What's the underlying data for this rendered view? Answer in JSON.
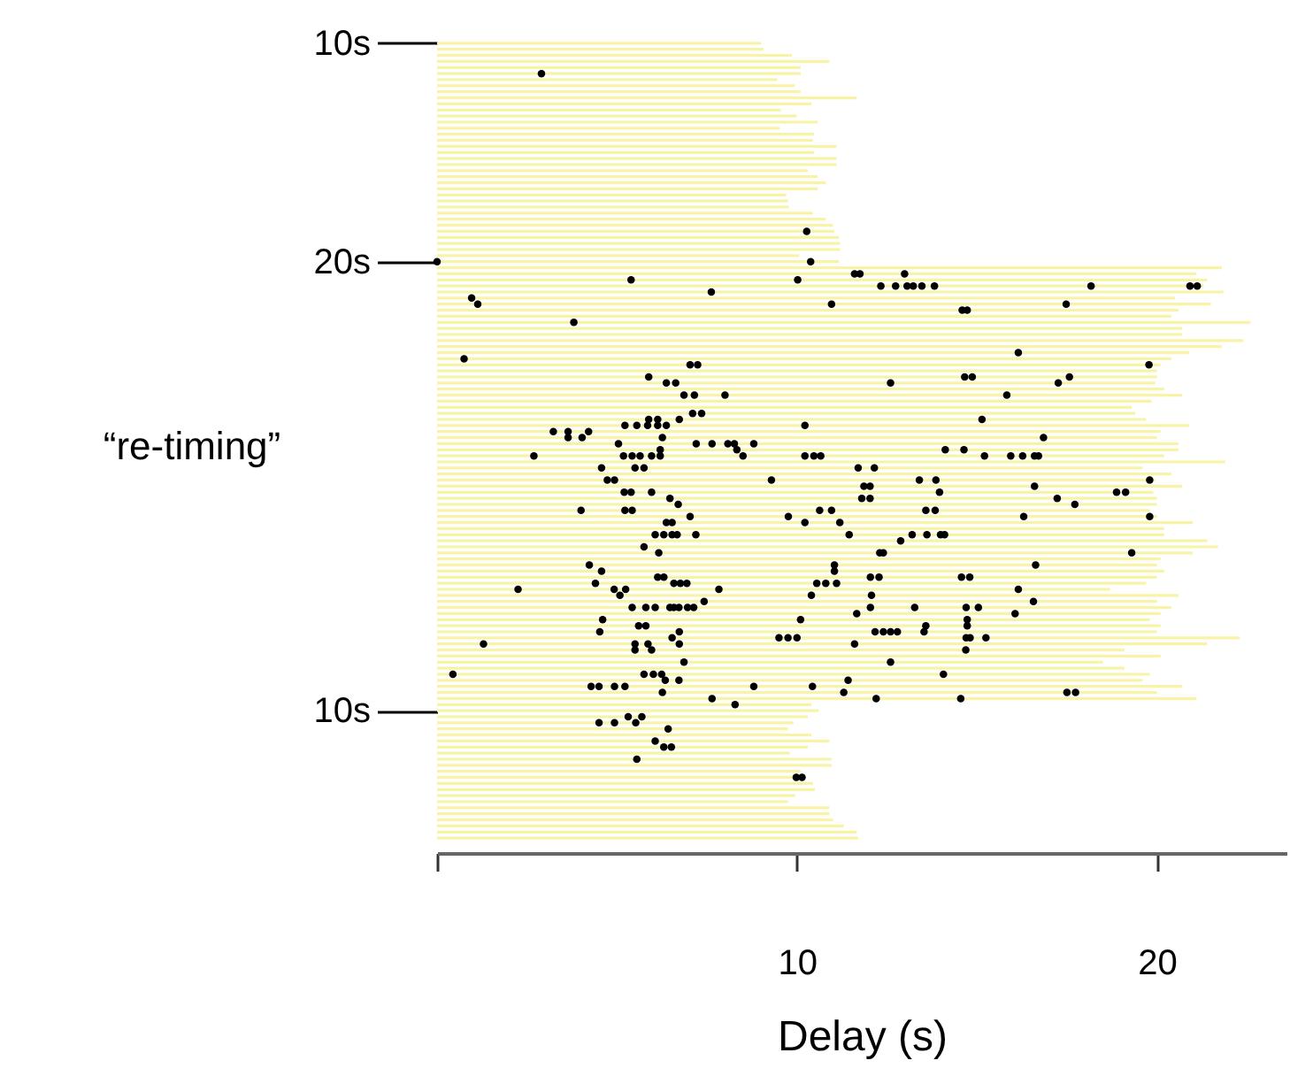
{
  "chart_data": {
    "type": "bar",
    "orientation": "horizontal",
    "xlabel": "Delay (s)",
    "ylabel": "“re-timing”",
    "xlim": [
      0,
      23.6
    ],
    "xticks": [
      {
        "value": 0,
        "label": null
      },
      10,
      20
    ],
    "categories": [
      "10s",
      null,
      null,
      null,
      null,
      null,
      null,
      null,
      null,
      null,
      null,
      null,
      null,
      null,
      null,
      null,
      null,
      null,
      null,
      null,
      null,
      null,
      null,
      null,
      null,
      null,
      null,
      null,
      null,
      null,
      null,
      null,
      null,
      null,
      null,
      null,
      "20s",
      null,
      null,
      null,
      null,
      null,
      null,
      null,
      null,
      null,
      null,
      null,
      null,
      null,
      null,
      null,
      null,
      null,
      null,
      null,
      null,
      null,
      null,
      null,
      null,
      null,
      null,
      null,
      null,
      null,
      null,
      null,
      null,
      null,
      null,
      null,
      null,
      null,
      null,
      null,
      null,
      null,
      null,
      null,
      null,
      null,
      null,
      null,
      null,
      null,
      null,
      null,
      null,
      null,
      null,
      null,
      null,
      null,
      null,
      null,
      null,
      null,
      null,
      null,
      null,
      null,
      null,
      null,
      null,
      null,
      null,
      null,
      null,
      null,
      "10s",
      null,
      null,
      null,
      null,
      null,
      null,
      null,
      null,
      null,
      null,
      null,
      null,
      null,
      null,
      null,
      null,
      null,
      null,
      null,
      null,
      null
    ],
    "marker": "circle",
    "series": [
      {
        "color": "#f8f3a6",
        "values": [
          9.0,
          9.07,
          9.86,
          10.9,
          10.1,
          10.1,
          9.45,
          9.94,
          10.1,
          11.66,
          10.4,
          9.55,
          9.99,
          10.58,
          9.52,
          10.47,
          10.44,
          11.1,
          10.47,
          11.1,
          11.1,
          10.3,
          10.58,
          10.8,
          10.58,
          9.7,
          9.75,
          9.77,
          10.44,
          10.8,
          11.0,
          11.04,
          11.17,
          11.2,
          11.2,
          10.06,
          11.17,
          21.8,
          21.1,
          21.4,
          21.3,
          21.85,
          20.5,
          21.5,
          20.6,
          20.4,
          22.6,
          20.7,
          20.7,
          22.4,
          21.8,
          20.9,
          20.4,
          20.1,
          20.0,
          20.0,
          19.95,
          20.2,
          20.7,
          19.85,
          19.3,
          19.4,
          19.7,
          20.9,
          20.1,
          20.0,
          20.6,
          20.6,
          20.2,
          21.9,
          19.6,
          20.4,
          19.95,
          20.7,
          19.9,
          20.0,
          20.0,
          19.8,
          20.0,
          21.0,
          20.2,
          20.2,
          21.4,
          21.7,
          21.0,
          20.1,
          20.0,
          20.2,
          20.0,
          19.7,
          18.7,
          20.6,
          20.0,
          20.4,
          20.1,
          19.8,
          20.1,
          20.0,
          22.3,
          21.4,
          19.1,
          20.1,
          18.5,
          19.1,
          19.8,
          19.6,
          20.7,
          20.0,
          21.1,
          10.4,
          10.6,
          10.3,
          9.9,
          9.75,
          10.4,
          10.9,
          10.3,
          9.8,
          10.96,
          10.96,
          10.1,
          9.95,
          10.45,
          10.5,
          9.95,
          9.75,
          10.9,
          10.9,
          11.0,
          11.3,
          11.66,
          11.7
        ]
      },
      {
        "type": "scatter",
        "color": "#000000",
        "values": [
          null,
          null,
          null,
          null,
          null,
          2.9,
          null,
          null,
          null,
          null,
          null,
          null,
          null,
          null,
          null,
          null,
          null,
          null,
          null,
          null,
          null,
          null,
          null,
          null,
          null,
          null,
          null,
          null,
          null,
          null,
          null,
          10.27,
          null,
          null,
          null,
          null,
          0,
          null,
          11.6,
          5.39,
          12.33,
          7.62,
          0.96,
          1.13,
          14.59,
          null,
          3.8,
          null,
          null,
          null,
          null,
          16.15,
          0.75,
          7.03,
          null,
          5.88,
          6.37,
          null,
          6.86,
          null,
          null,
          7.1,
          5.88,
          5.22,
          3.23,
          3.64,
          5.04,
          6.2,
          2.69,
          null,
          4.57,
          null,
          4.73,
          11.86,
          5.2,
          6.47,
          6.7,
          4.0,
          7.03,
          6.37,
          null,
          6.06,
          12.88,
          5.75,
          6.16,
          null,
          4.23,
          4.57,
          6.13,
          4.4,
          2.25,
          5.08,
          7.42,
          5.42,
          11.66,
          4.6,
          5.6,
          4.52,
          6.53,
          1.29,
          5.5,
          null,
          6.86,
          null,
          0.44,
          6.34,
          4.28,
          6.26,
          7.64,
          8.28,
          null,
          5.31,
          4.5,
          6.42,
          null,
          6.06,
          6.3,
          null,
          5.55,
          null,
          null,
          9.98,
          null,
          null,
          null,
          null,
          null,
          null,
          null,
          null,
          null,
          null
        ]
      },
      {
        "type": "scatter",
        "color": "#000000",
        "values": [
          null,
          null,
          null,
          null,
          null,
          null,
          null,
          null,
          null,
          null,
          null,
          null,
          null,
          null,
          null,
          null,
          null,
          null,
          null,
          null,
          null,
          null,
          null,
          null,
          null,
          null,
          null,
          null,
          null,
          null,
          null,
          null,
          null,
          null,
          null,
          null,
          10.38,
          null,
          11.75,
          10.02,
          12.74,
          null,
          null,
          10.96,
          14.73,
          null,
          null,
          null,
          null,
          null,
          null,
          null,
          null,
          7.24,
          null,
          14.66,
          6.63,
          null,
          7.15,
          null,
          null,
          7.35,
          6.13,
          5.55,
          3.64,
          4.03,
          7.2,
          8.33,
          5.18,
          null,
          5.5,
          null,
          4.93,
          12.03,
          5.39,
          11.8,
          17.72,
          5.22,
          9.76,
          6.53,
          null,
          6.3,
          null,
          null,
          12.3,
          null,
          11.04,
          11.04,
          6.3,
          6.58,
          4.92,
          10.4,
          16.57,
          5.8,
          16.06,
          10.1,
          5.8,
          6.73,
          9.5,
          5.5,
          5.96,
          null,
          12.6,
          null,
          5.75,
          6.72,
          4.5,
          11.3,
          12.2,
          null,
          null,
          5.69,
          4.93,
          null,
          null,
          null,
          6.51,
          null,
          null,
          null,
          null,
          10.14,
          null,
          null,
          null,
          null,
          null,
          null,
          null,
          null,
          null,
          null
        ]
      },
      {
        "type": "scatter",
        "color": "#000000",
        "values": [
          null,
          null,
          null,
          null,
          null,
          null,
          null,
          null,
          null,
          null,
          null,
          null,
          null,
          null,
          null,
          null,
          null,
          null,
          null,
          null,
          null,
          null,
          null,
          null,
          null,
          null,
          null,
          null,
          null,
          null,
          null,
          null,
          null,
          null,
          null,
          null,
          null,
          null,
          12.99,
          null,
          13.06,
          null,
          null,
          17.48,
          null,
          null,
          null,
          null,
          null,
          null,
          null,
          null,
          null,
          19.78,
          null,
          14.87,
          12.6,
          null,
          8.0,
          null,
          null,
          null,
          6.73,
          5.85,
          4.21,
          6.26,
          7.64,
          14.12,
          5.42,
          null,
          5.75,
          null,
          9.29,
          16.6,
          5.96,
          12.03,
          null,
          5.42,
          16.3,
          10.22,
          null,
          6.53,
          null,
          null,
          12.4,
          null,
          16.63,
          null,
          12.04,
          6.76,
          5.24,
          12.07,
          null,
          6.06,
          null,
          14.73,
          13.58,
          12.17,
          9.75,
          5.86,
          14.69,
          null,
          null,
          null,
          6.01,
          11.42,
          4.93,
          17.5,
          14.55,
          null,
          null,
          null,
          5.52,
          null,
          null,
          null,
          null,
          null,
          null,
          null,
          null,
          null,
          null,
          null,
          null,
          null,
          null,
          null,
          null,
          null,
          null,
          null
        ]
      },
      {
        "type": "scatter",
        "color": "#000000",
        "values": [
          null,
          null,
          null,
          null,
          null,
          null,
          null,
          null,
          null,
          null,
          null,
          null,
          null,
          null,
          null,
          null,
          null,
          null,
          null,
          null,
          null,
          null,
          null,
          null,
          null,
          null,
          null,
          null,
          null,
          null,
          null,
          null,
          null,
          null,
          null,
          null,
          null,
          null,
          null,
          null,
          13.23,
          null,
          null,
          null,
          null,
          null,
          null,
          null,
          null,
          null,
          null,
          null,
          null,
          null,
          null,
          17.57,
          17.26,
          null,
          15.83,
          null,
          null,
          null,
          15.14,
          6.13,
          null,
          16.85,
          8.08,
          14.64,
          5.64,
          null,
          11.7,
          null,
          13.4,
          null,
          13.96,
          17.23,
          null,
          10.63,
          19.8,
          11.19,
          null,
          6.67,
          null,
          null,
          19.3,
          null,
          null,
          null,
          12.28,
          6.94,
          7.83,
          null,
          null,
          6.47,
          null,
          null,
          14.73,
          12.4,
          10.0,
          6.73,
          null,
          null,
          null,
          null,
          6.24,
          null,
          5.22,
          17.74,
          null,
          null,
          null,
          null,
          null,
          null,
          null,
          null,
          null,
          null,
          null,
          null,
          null,
          null,
          null,
          null,
          null,
          null,
          null,
          null,
          null,
          null,
          null,
          null
        ]
      },
      {
        "type": "scatter",
        "color": "#000000",
        "values": [
          null,
          null,
          null,
          null,
          null,
          null,
          null,
          null,
          null,
          null,
          null,
          null,
          null,
          null,
          null,
          null,
          null,
          null,
          null,
          null,
          null,
          null,
          null,
          null,
          null,
          null,
          null,
          null,
          null,
          null,
          null,
          null,
          null,
          null,
          null,
          null,
          null,
          null,
          null,
          null,
          13.47,
          null,
          null,
          null,
          null,
          null,
          null,
          null,
          null,
          null,
          null,
          null,
          null,
          null,
          null,
          null,
          null,
          null,
          null,
          null,
          null,
          null,
          null,
          6.37,
          null,
          null,
          8.26,
          null,
          5.96,
          null,
          12.15,
          null,
          13.86,
          null,
          18.88,
          null,
          null,
          10.96,
          null,
          null,
          null,
          7.19,
          null,
          null,
          null,
          null,
          null,
          null,
          14.57,
          10.55,
          16.15,
          null,
          null,
          6.58,
          null,
          null,
          null,
          12.6,
          14.7,
          11.6,
          null,
          null,
          null,
          null,
          14.07,
          null,
          8.8,
          null,
          null,
          null,
          null,
          null,
          null,
          null,
          null,
          null,
          null,
          null,
          null,
          null,
          null,
          null,
          null,
          null,
          null,
          null,
          null,
          null,
          null,
          null,
          null,
          null
        ]
      },
      {
        "type": "scatter",
        "color": "#000000",
        "values": [
          null,
          null,
          null,
          null,
          null,
          null,
          null,
          null,
          null,
          null,
          null,
          null,
          null,
          null,
          null,
          null,
          null,
          null,
          null,
          null,
          null,
          null,
          null,
          null,
          null,
          null,
          null,
          null,
          null,
          null,
          null,
          null,
          null,
          null,
          null,
          null,
          null,
          null,
          null,
          null,
          13.82,
          null,
          null,
          null,
          null,
          null,
          null,
          null,
          null,
          null,
          null,
          null,
          null,
          null,
          null,
          null,
          null,
          null,
          null,
          null,
          null,
          null,
          null,
          10.22,
          null,
          null,
          8.8,
          null,
          6.2,
          null,
          null,
          null,
          19.8,
          null,
          19.13,
          null,
          null,
          13.58,
          null,
          null,
          null,
          11.45,
          null,
          null,
          null,
          null,
          null,
          null,
          14.8,
          10.8,
          null,
          null,
          null,
          6.72,
          null,
          null,
          null,
          12.79,
          14.81,
          null,
          null,
          null,
          null,
          null,
          null,
          null,
          10.43,
          null,
          null,
          null,
          null,
          null,
          null,
          null,
          null,
          null,
          null,
          null,
          null,
          null,
          null,
          null,
          null,
          null,
          null,
          null,
          null,
          null,
          null,
          null,
          null,
          null
        ]
      },
      {
        "type": "scatter",
        "color": "#000000",
        "values": [
          null,
          null,
          null,
          null,
          null,
          null,
          null,
          null,
          null,
          null,
          null,
          null,
          null,
          null,
          null,
          null,
          null,
          null,
          null,
          null,
          null,
          null,
          null,
          null,
          null,
          null,
          null,
          null,
          null,
          null,
          null,
          null,
          null,
          null,
          null,
          null,
          null,
          null,
          null,
          null,
          18.17,
          null,
          null,
          null,
          null,
          null,
          null,
          null,
          null,
          null,
          null,
          null,
          null,
          null,
          null,
          null,
          null,
          null,
          null,
          null,
          null,
          null,
          null,
          null,
          null,
          null,
          null,
          null,
          8.5,
          null,
          null,
          null,
          null,
          null,
          null,
          null,
          null,
          13.84,
          null,
          null,
          null,
          13.2,
          null,
          null,
          null,
          null,
          null,
          null,
          null,
          11.1,
          null,
          null,
          null,
          6.96,
          null,
          null,
          null,
          13.53,
          15.25,
          null,
          null,
          null,
          null,
          null,
          null,
          null,
          null,
          null,
          null,
          null,
          null,
          null,
          null,
          null,
          null,
          null,
          null,
          null,
          null,
          null,
          null,
          null,
          null,
          null,
          null,
          null,
          null,
          null,
          null,
          null,
          null,
          null
        ]
      },
      {
        "type": "scatter",
        "color": "#000000",
        "values": [
          null,
          null,
          null,
          null,
          null,
          null,
          null,
          null,
          null,
          null,
          null,
          null,
          null,
          null,
          null,
          null,
          null,
          null,
          null,
          null,
          null,
          null,
          null,
          null,
          null,
          null,
          null,
          null,
          null,
          null,
          null,
          null,
          null,
          null,
          null,
          null,
          null,
          null,
          null,
          null,
          20.92,
          null,
          null,
          null,
          null,
          null,
          null,
          null,
          null,
          null,
          null,
          null,
          null,
          null,
          null,
          null,
          null,
          null,
          null,
          null,
          null,
          null,
          null,
          null,
          null,
          null,
          null,
          null,
          10.22,
          null,
          null,
          null,
          null,
          null,
          null,
          null,
          null,
          null,
          null,
          null,
          null,
          13.61,
          null,
          null,
          null,
          null,
          null,
          null,
          null,
          null,
          null,
          null,
          null,
          7.13,
          null,
          null,
          null,
          null,
          null,
          null,
          null,
          null,
          null,
          null,
          null,
          null,
          null,
          null,
          null,
          null,
          null,
          null,
          null,
          null,
          null,
          null,
          null,
          null,
          null,
          null,
          null,
          null,
          null,
          null,
          null,
          null,
          null,
          null,
          null,
          null,
          null,
          null
        ]
      },
      {
        "type": "scatter",
        "color": "#000000",
        "values": [
          null,
          null,
          null,
          null,
          null,
          null,
          null,
          null,
          null,
          null,
          null,
          null,
          null,
          null,
          null,
          null,
          null,
          null,
          null,
          null,
          null,
          null,
          null,
          null,
          null,
          null,
          null,
          null,
          null,
          null,
          null,
          null,
          null,
          null,
          null,
          null,
          null,
          null,
          null,
          null,
          21.12,
          null,
          null,
          null,
          null,
          null,
          null,
          null,
          null,
          null,
          null,
          null,
          null,
          null,
          null,
          null,
          null,
          null,
          null,
          null,
          null,
          null,
          null,
          null,
          null,
          null,
          null,
          null,
          10.47,
          null,
          null,
          null,
          null,
          null,
          null,
          null,
          null,
          null,
          null,
          null,
          null,
          13.99,
          null,
          null,
          null,
          null,
          null,
          null,
          null,
          null,
          null,
          null,
          null,
          12.04,
          null,
          null,
          null,
          null,
          null,
          null,
          null,
          null,
          null,
          null,
          null,
          null,
          null,
          null,
          null,
          null,
          null,
          null,
          null,
          null,
          null,
          null,
          null,
          null,
          null,
          null,
          null,
          null,
          null,
          null,
          null,
          null,
          null,
          null,
          null,
          null,
          null,
          null
        ]
      },
      {
        "type": "scatter",
        "color": "#000000",
        "values": [
          null,
          null,
          null,
          null,
          null,
          null,
          null,
          null,
          null,
          null,
          null,
          null,
          null,
          null,
          null,
          null,
          null,
          null,
          null,
          null,
          null,
          null,
          null,
          null,
          null,
          null,
          null,
          null,
          null,
          null,
          null,
          null,
          null,
          null,
          null,
          null,
          null,
          null,
          null,
          null,
          null,
          null,
          null,
          null,
          null,
          null,
          null,
          null,
          null,
          null,
          null,
          null,
          null,
          null,
          null,
          null,
          null,
          null,
          null,
          null,
          null,
          null,
          null,
          null,
          null,
          null,
          null,
          null,
          10.66,
          null,
          null,
          null,
          null,
          null,
          null,
          null,
          null,
          null,
          null,
          null,
          null,
          14.1,
          null,
          null,
          null,
          null,
          null,
          null,
          null,
          null,
          null,
          null,
          null,
          13.27,
          null,
          null,
          null,
          null,
          null,
          null,
          null,
          null,
          null,
          null,
          null,
          null,
          null,
          null,
          null,
          null,
          null,
          null,
          null,
          null,
          null,
          null,
          null,
          null,
          null,
          null,
          null,
          null,
          null,
          null,
          null,
          null,
          null,
          null,
          null,
          null,
          null,
          null
        ]
      },
      {
        "type": "scatter",
        "color": "#000000",
        "values": [
          null,
          null,
          null,
          null,
          null,
          null,
          null,
          null,
          null,
          null,
          null,
          null,
          null,
          null,
          null,
          null,
          null,
          null,
          null,
          null,
          null,
          null,
          null,
          null,
          null,
          null,
          null,
          null,
          null,
          null,
          null,
          null,
          null,
          null,
          null,
          null,
          null,
          null,
          null,
          null,
          null,
          null,
          null,
          null,
          null,
          null,
          null,
          null,
          null,
          null,
          null,
          null,
          null,
          null,
          null,
          null,
          null,
          null,
          null,
          null,
          null,
          null,
          null,
          null,
          null,
          null,
          null,
          null,
          15.21,
          null,
          null,
          null,
          null,
          null,
          null,
          null,
          null,
          null,
          null,
          null,
          null,
          null,
          null,
          null,
          null,
          null,
          null,
          null,
          null,
          null,
          null,
          null,
          null,
          14.7,
          null,
          null,
          null,
          null,
          null,
          null,
          null,
          null,
          null,
          null,
          null,
          null,
          null,
          null,
          null,
          null,
          null,
          null,
          null,
          null,
          null,
          null,
          null,
          null,
          null,
          null,
          null,
          null,
          null,
          null,
          null,
          null,
          null,
          null,
          null,
          null,
          null,
          null
        ]
      },
      {
        "type": "scatter",
        "color": "#000000",
        "values": [
          null,
          null,
          null,
          null,
          null,
          null,
          null,
          null,
          null,
          null,
          null,
          null,
          null,
          null,
          null,
          null,
          null,
          null,
          null,
          null,
          null,
          null,
          null,
          null,
          null,
          null,
          null,
          null,
          null,
          null,
          null,
          null,
          null,
          null,
          null,
          null,
          null,
          null,
          null,
          null,
          null,
          null,
          null,
          null,
          null,
          null,
          null,
          null,
          null,
          null,
          null,
          null,
          null,
          null,
          null,
          null,
          null,
          null,
          null,
          null,
          null,
          null,
          null,
          null,
          null,
          null,
          null,
          null,
          15.94,
          null,
          null,
          null,
          null,
          null,
          null,
          null,
          null,
          null,
          null,
          null,
          null,
          null,
          null,
          null,
          null,
          null,
          null,
          null,
          null,
          null,
          null,
          null,
          null,
          15.04,
          null,
          null,
          null,
          null,
          null,
          null,
          null,
          null,
          null,
          null,
          null,
          null,
          null,
          null,
          null,
          null,
          null,
          null,
          null,
          null,
          null,
          null,
          null,
          null,
          null,
          null,
          null,
          null,
          null,
          null,
          null,
          null,
          null,
          null,
          null,
          null,
          null,
          null
        ]
      },
      {
        "type": "scatter",
        "color": "#000000",
        "values": [
          null,
          null,
          null,
          null,
          null,
          null,
          null,
          null,
          null,
          null,
          null,
          null,
          null,
          null,
          null,
          null,
          null,
          null,
          null,
          null,
          null,
          null,
          null,
          null,
          null,
          null,
          null,
          null,
          null,
          null,
          null,
          null,
          null,
          null,
          null,
          null,
          null,
          null,
          null,
          null,
          null,
          null,
          null,
          null,
          null,
          null,
          null,
          null,
          null,
          null,
          null,
          null,
          null,
          null,
          null,
          null,
          null,
          null,
          null,
          null,
          null,
          null,
          null,
          null,
          null,
          null,
          null,
          null,
          16.27,
          null,
          null,
          null,
          null,
          null,
          null,
          null,
          null,
          null,
          null,
          null,
          null,
          null,
          null,
          null,
          null,
          null,
          null,
          null,
          null,
          null,
          null,
          null,
          null,
          null,
          null,
          null,
          null,
          null,
          null,
          null,
          null,
          null,
          null,
          null,
          null,
          null,
          null,
          null,
          null,
          null,
          null,
          null,
          null,
          null,
          null,
          null,
          null,
          null,
          null,
          null,
          null,
          null,
          null,
          null,
          null,
          null,
          null,
          null,
          null,
          null,
          null,
          null
        ]
      },
      {
        "type": "scatter",
        "color": "#000000",
        "values": [
          null,
          null,
          null,
          null,
          null,
          null,
          null,
          null,
          null,
          null,
          null,
          null,
          null,
          null,
          null,
          null,
          null,
          null,
          null,
          null,
          null,
          null,
          null,
          null,
          null,
          null,
          null,
          null,
          null,
          null,
          null,
          null,
          null,
          null,
          null,
          null,
          null,
          null,
          null,
          null,
          null,
          null,
          null,
          null,
          null,
          null,
          null,
          null,
          null,
          null,
          null,
          null,
          null,
          null,
          null,
          null,
          null,
          null,
          null,
          null,
          null,
          null,
          null,
          null,
          null,
          null,
          null,
          null,
          16.6,
          null,
          null,
          null,
          null,
          null,
          null,
          null,
          null,
          null,
          null,
          null,
          null,
          null,
          null,
          null,
          null,
          null,
          null,
          null,
          null,
          null,
          null,
          null,
          null,
          null,
          null,
          null,
          null,
          null,
          null,
          null,
          null,
          null,
          null,
          null,
          null,
          null,
          null,
          null,
          null,
          null,
          null,
          null,
          null,
          null,
          null,
          null,
          null,
          null,
          null,
          null,
          null,
          null,
          null,
          null,
          null,
          null,
          null,
          null,
          null,
          null,
          null,
          null
        ]
      },
      {
        "type": "scatter",
        "color": "#000000",
        "values": [
          null,
          null,
          null,
          null,
          null,
          null,
          null,
          null,
          null,
          null,
          null,
          null,
          null,
          null,
          null,
          null,
          null,
          null,
          null,
          null,
          null,
          null,
          null,
          null,
          null,
          null,
          null,
          null,
          null,
          null,
          null,
          null,
          null,
          null,
          null,
          null,
          null,
          null,
          null,
          null,
          null,
          null,
          null,
          null,
          null,
          null,
          null,
          null,
          null,
          null,
          null,
          null,
          null,
          null,
          null,
          null,
          null,
          null,
          null,
          null,
          null,
          null,
          null,
          null,
          null,
          null,
          null,
          null,
          16.71,
          null,
          null,
          null,
          null,
          null,
          null,
          null,
          null,
          null,
          null,
          null,
          null,
          null,
          null,
          null,
          null,
          null,
          null,
          null,
          null,
          null,
          null,
          null,
          null,
          null,
          null,
          null,
          null,
          null,
          null,
          null,
          null,
          null,
          null,
          null,
          null,
          null,
          null,
          null,
          null,
          null,
          null,
          null,
          null,
          null,
          null,
          null,
          null,
          null,
          null,
          null,
          null,
          null,
          null,
          null,
          null,
          null,
          null,
          null,
          null,
          null,
          null,
          null
        ]
      }
    ]
  }
}
